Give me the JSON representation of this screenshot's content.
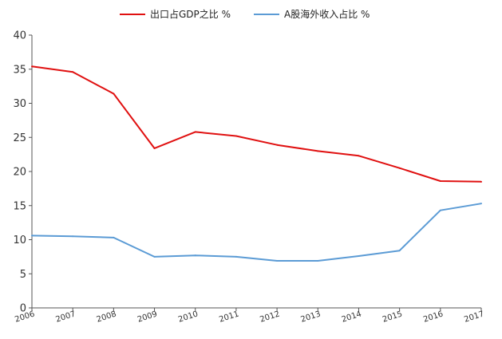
{
  "chart_data": {
    "type": "line",
    "title": "",
    "xlabel": "",
    "ylabel": "",
    "categories": [
      "2006",
      "2007",
      "2008",
      "2009",
      "2010",
      "2011",
      "2012",
      "2013",
      "2014",
      "2015",
      "2016",
      "2017"
    ],
    "ylim": [
      0,
      40
    ],
    "yticks": [
      "0",
      "5",
      "10",
      "15",
      "20",
      "25",
      "30",
      "35",
      "40"
    ],
    "grid": false,
    "legend_position": "top",
    "series": [
      {
        "name": "出口占GDP之比 %",
        "color": "#e01010",
        "values": [
          35.4,
          34.6,
          31.4,
          23.4,
          25.8,
          25.2,
          23.9,
          23.0,
          22.3,
          20.5,
          18.6,
          18.5
        ]
      },
      {
        "name": "A股海外收入占比 %",
        "color": "#5b9bd5",
        "values": [
          10.6,
          10.5,
          10.3,
          7.5,
          7.7,
          7.5,
          6.9,
          6.9,
          7.6,
          8.4,
          14.3,
          15.3
        ]
      }
    ]
  }
}
